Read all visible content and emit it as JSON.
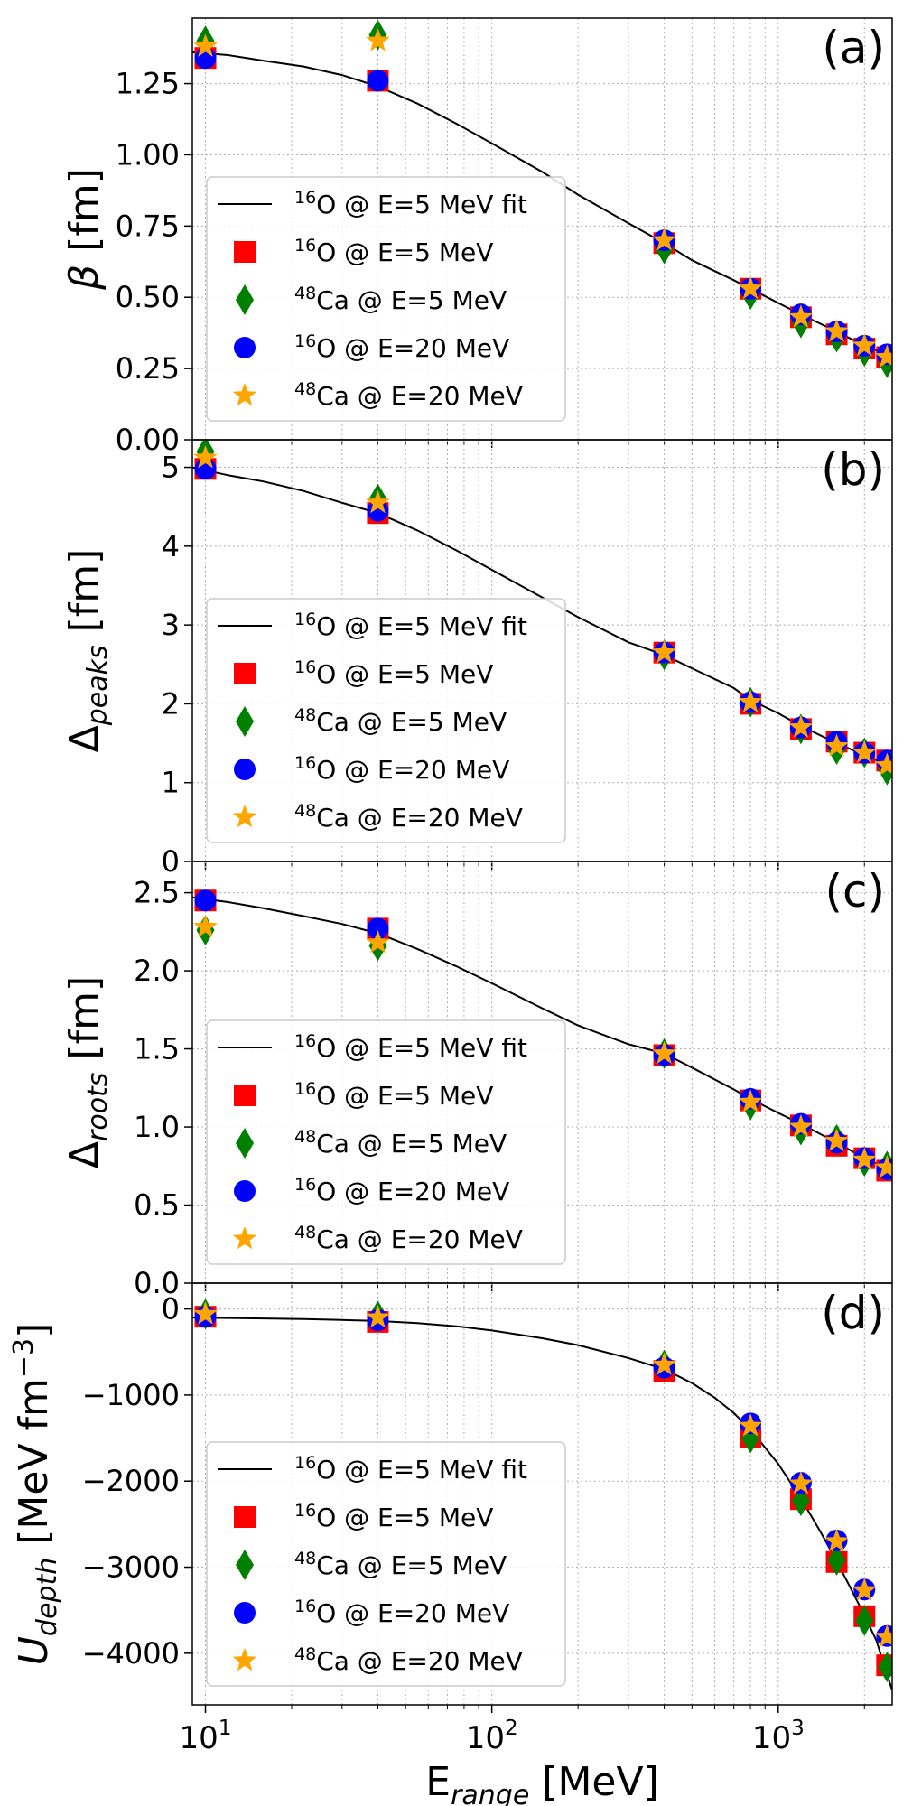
{
  "figure": {
    "xlabel": {
      "main": "E",
      "sub": "range",
      "unit": " [MeV]"
    },
    "x_tick_labels": [
      {
        "value": 10,
        "base": "10",
        "exp": "1"
      },
      {
        "value": 100,
        "base": "10",
        "exp": "2"
      },
      {
        "value": 1000,
        "base": "10",
        "exp": "3"
      }
    ],
    "legend_entries": [
      {
        "key": "fit",
        "iso": "16",
        "rest": "O @ E=5 MeV fit",
        "color": "#000000"
      },
      {
        "key": "o5",
        "iso": "16",
        "rest": "O @ E=5 MeV",
        "color": "#ff0000",
        "marker": "square"
      },
      {
        "key": "ca5",
        "iso": "48",
        "rest": "Ca @ E=5 MeV",
        "color": "#008000",
        "marker": "diamond"
      },
      {
        "key": "o20",
        "iso": "16",
        "rest": "O @ E=20 MeV",
        "color": "#0000ff",
        "marker": "circle"
      },
      {
        "key": "ca20",
        "iso": "48",
        "rest": "Ca @ E=20 MeV",
        "color": "#ffa500",
        "marker": "star"
      }
    ]
  },
  "chart_data": [
    {
      "type": "scatter",
      "panel_label": "(a)",
      "ylabel": {
        "main": "β",
        "sub": "",
        "unit": " [fm]",
        "italic": true
      },
      "xscale": "log",
      "xlim": [
        9,
        2500
      ],
      "ylim": [
        0.0,
        1.48
      ],
      "y_ticks": [
        0.0,
        0.25,
        0.5,
        0.75,
        1.0,
        1.25
      ],
      "y_tick_labels": [
        "0.00",
        "0.25",
        "0.50",
        "0.75",
        "1.00",
        "1.25"
      ],
      "grid": true,
      "legend_position": "lower-left",
      "x": [
        10,
        40,
        400,
        800,
        1200,
        1600,
        2000,
        2400
      ],
      "series": [
        {
          "name": "16O @ E=5 MeV fit",
          "style": "line",
          "x": [
            9,
            12,
            16,
            22,
            30,
            40,
            55,
            75,
            100,
            150,
            200,
            300,
            400,
            500,
            700,
            800,
            1000,
            1200,
            1600,
            2000,
            2500
          ],
          "values": [
            1.36,
            1.35,
            1.33,
            1.31,
            1.28,
            1.24,
            1.18,
            1.11,
            1.04,
            0.94,
            0.86,
            0.76,
            0.69,
            0.63,
            0.56,
            0.53,
            0.48,
            0.44,
            0.38,
            0.33,
            0.29
          ]
        },
        {
          "name": "16O @ E=5 MeV",
          "marker": "square",
          "values": [
            1.34,
            1.26,
            0.69,
            0.53,
            0.43,
            0.37,
            0.32,
            0.29
          ]
        },
        {
          "name": "48Ca @ E=5 MeV",
          "marker": "diamond",
          "values": [
            1.4,
            1.42,
            0.67,
            0.51,
            0.41,
            0.36,
            0.31,
            0.27
          ]
        },
        {
          "name": "16O @ E=20 MeV",
          "marker": "circle",
          "values": [
            1.34,
            1.26,
            0.7,
            0.53,
            0.44,
            0.38,
            0.33,
            0.3
          ]
        },
        {
          "name": "48Ca @ E=20 MeV",
          "marker": "star",
          "values": [
            1.38,
            1.4,
            0.7,
            0.53,
            0.43,
            0.38,
            0.33,
            0.29
          ]
        }
      ]
    },
    {
      "type": "scatter",
      "panel_label": "(b)",
      "ylabel": {
        "main": "Δ",
        "sub": "peaks",
        "unit": " [fm]",
        "italic": false
      },
      "xscale": "log",
      "xlim": [
        9,
        2500
      ],
      "ylim": [
        0,
        5.35
      ],
      "y_ticks": [
        0,
        1,
        2,
        3,
        4,
        5
      ],
      "y_tick_labels": [
        "0",
        "1",
        "2",
        "3",
        "4",
        "5"
      ],
      "grid": true,
      "legend_position": "lower-left",
      "x": [
        10,
        40,
        400,
        800,
        1200,
        1600,
        2000,
        2400
      ],
      "series": [
        {
          "name": "16O @ E=5 MeV fit",
          "style": "line",
          "x": [
            9,
            12,
            16,
            22,
            30,
            40,
            55,
            75,
            100,
            150,
            200,
            300,
            400,
            500,
            700,
            800,
            1000,
            1200,
            1600,
            2000,
            2500
          ],
          "values": [
            5.0,
            4.9,
            4.82,
            4.7,
            4.55,
            4.42,
            4.2,
            3.95,
            3.7,
            3.35,
            3.1,
            2.78,
            2.62,
            2.45,
            2.2,
            2.05,
            1.88,
            1.72,
            1.5,
            1.35,
            1.2
          ]
        },
        {
          "name": "16O @ E=5 MeV",
          "marker": "square",
          "values": [
            4.98,
            4.42,
            2.65,
            2.0,
            1.68,
            1.52,
            1.38,
            1.28
          ]
        },
        {
          "name": "48Ca @ E=5 MeV",
          "marker": "diamond",
          "values": [
            5.2,
            4.6,
            2.62,
            2.02,
            1.68,
            1.42,
            1.38,
            1.16
          ]
        },
        {
          "name": "16O @ E=20 MeV",
          "marker": "circle",
          "values": [
            4.98,
            4.45,
            2.65,
            2.02,
            1.7,
            1.52,
            1.38,
            1.28
          ]
        },
        {
          "name": "48Ca @ E=20 MeV",
          "marker": "star",
          "values": [
            5.12,
            4.55,
            2.65,
            2.02,
            1.7,
            1.46,
            1.38,
            1.22
          ]
        }
      ]
    },
    {
      "type": "scatter",
      "panel_label": "(c)",
      "ylabel": {
        "main": "Δ",
        "sub": "roots",
        "unit": " [fm]",
        "italic": false
      },
      "xscale": "log",
      "xlim": [
        9,
        2500
      ],
      "ylim": [
        0.0,
        2.7
      ],
      "y_ticks": [
        0.0,
        0.5,
        1.0,
        1.5,
        2.0,
        2.5
      ],
      "y_tick_labels": [
        "0.0",
        "0.5",
        "1.0",
        "1.5",
        "2.0",
        "2.5"
      ],
      "grid": true,
      "legend_position": "lower-left",
      "x": [
        10,
        40,
        400,
        800,
        1200,
        1600,
        2000,
        2400
      ],
      "series": [
        {
          "name": "16O @ E=5 MeV fit",
          "style": "line",
          "x": [
            9,
            12,
            16,
            22,
            30,
            40,
            55,
            75,
            100,
            150,
            200,
            300,
            400,
            500,
            700,
            800,
            1000,
            1200,
            1600,
            2000,
            2500
          ],
          "values": [
            2.47,
            2.44,
            2.4,
            2.35,
            2.3,
            2.24,
            2.14,
            2.03,
            1.92,
            1.76,
            1.65,
            1.53,
            1.47,
            1.38,
            1.24,
            1.18,
            1.09,
            1.02,
            0.9,
            0.8,
            0.72
          ]
        },
        {
          "name": "16O @ E=5 MeV",
          "marker": "square",
          "values": [
            2.45,
            2.27,
            1.46,
            1.17,
            1.01,
            0.88,
            0.8,
            0.72
          ]
        },
        {
          "name": "48Ca @ E=5 MeV",
          "marker": "diamond",
          "values": [
            2.26,
            2.16,
            1.47,
            1.14,
            0.98,
            0.92,
            0.78,
            0.75
          ]
        },
        {
          "name": "16O @ E=20 MeV",
          "marker": "circle",
          "values": [
            2.45,
            2.27,
            1.46,
            1.18,
            1.02,
            0.9,
            0.8,
            0.73
          ]
        },
        {
          "name": "48Ca @ E=20 MeV",
          "marker": "star",
          "values": [
            2.28,
            2.18,
            1.47,
            1.16,
            1.0,
            0.91,
            0.79,
            0.74
          ]
        }
      ]
    },
    {
      "type": "scatter",
      "panel_label": "(d)",
      "ylabel": {
        "main": "U",
        "sub": "depth",
        "unit": " [MeV fm",
        "sup": "−3",
        "close": "]",
        "italic": true
      },
      "xscale": "log",
      "xlim": [
        9,
        2500
      ],
      "ylim": [
        -4600,
        300
      ],
      "y_ticks": [
        0,
        -1000,
        -2000,
        -3000,
        -4000
      ],
      "y_tick_labels": [
        "0",
        "−1000",
        "−2000",
        "−3000",
        "−4000"
      ],
      "grid": true,
      "legend_position": "lower-left",
      "x": [
        10,
        40,
        400,
        800,
        1200,
        1600,
        2000,
        2400
      ],
      "series": [
        {
          "name": "16O @ E=5 MeV fit",
          "style": "line",
          "x": [
            9,
            12,
            16,
            22,
            30,
            40,
            55,
            75,
            100,
            150,
            200,
            300,
            400,
            500,
            600,
            700,
            800,
            1000,
            1200,
            1400,
            1600,
            1800,
            2000,
            2200,
            2500
          ],
          "values": [
            -100,
            -105,
            -110,
            -118,
            -128,
            -140,
            -165,
            -200,
            -250,
            -340,
            -420,
            -570,
            -700,
            -860,
            -1030,
            -1210,
            -1400,
            -1800,
            -2200,
            -2580,
            -2930,
            -3260,
            -3560,
            -3850,
            -4430
          ]
        },
        {
          "name": "16O @ E=5 MeV",
          "marker": "square",
          "values": [
            -90,
            -150,
            -720,
            -1490,
            -2210,
            -2940,
            -3570,
            -4140
          ]
        },
        {
          "name": "48Ca @ E=5 MeV",
          "marker": "diamond",
          "values": [
            -60,
            -80,
            -650,
            -1500,
            -2230,
            -2920,
            -3620,
            -4160
          ]
        },
        {
          "name": "16O @ E=20 MeV",
          "marker": "circle",
          "values": [
            -90,
            -130,
            -680,
            -1330,
            -2020,
            -2690,
            -3260,
            -3800
          ]
        },
        {
          "name": "48Ca @ E=20 MeV",
          "marker": "star",
          "values": [
            -60,
            -100,
            -650,
            -1360,
            -2030,
            -2700,
            -3270,
            -3810
          ]
        }
      ]
    }
  ]
}
